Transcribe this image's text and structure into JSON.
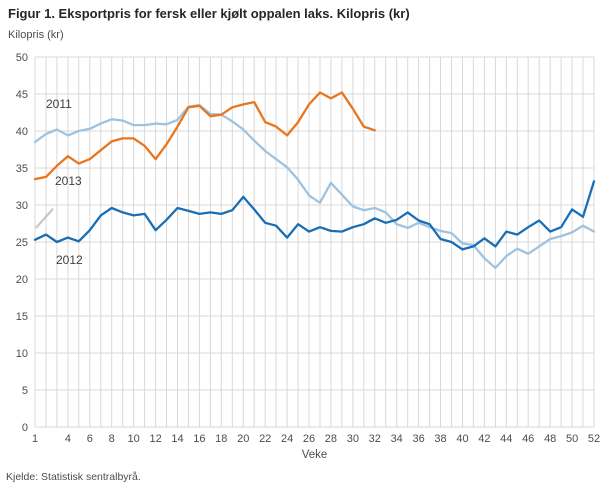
{
  "chart_data": {
    "type": "line",
    "title": "Figur 1. Eksportpris for fersk eller kjølt oppalen laks. Kilopris (kr)",
    "ylabel": "Kilopris (kr)",
    "xlabel": "Veke",
    "source": "Kjelde: Statistisk sentralbyrå.",
    "xlim": [
      1,
      52
    ],
    "ylim": [
      0,
      50
    ],
    "yticks": [
      0,
      5,
      10,
      15,
      20,
      25,
      30,
      35,
      40,
      45,
      50
    ],
    "xticks": [
      1,
      4,
      6,
      8,
      10,
      12,
      14,
      16,
      18,
      20,
      22,
      24,
      26,
      28,
      30,
      32,
      34,
      36,
      38,
      40,
      42,
      44,
      46,
      48,
      50,
      52
    ],
    "grid": "both",
    "legend_position": "inline-labels",
    "colors": {
      "grid": "#d8d8d8",
      "axis_text": "#4d4d4d"
    },
    "x": [
      1,
      2,
      3,
      4,
      5,
      6,
      7,
      8,
      9,
      10,
      11,
      12,
      13,
      14,
      15,
      16,
      17,
      18,
      19,
      20,
      21,
      22,
      23,
      24,
      25,
      26,
      27,
      28,
      29,
      30,
      31,
      32,
      33,
      34,
      35,
      36,
      37,
      38,
      39,
      40,
      41,
      42,
      43,
      44,
      45,
      46,
      47,
      48,
      49,
      50,
      51,
      52
    ],
    "series": [
      {
        "name": "2011",
        "color": "#9dc3e0",
        "values": [
          38.5,
          39.6,
          40.2,
          39.4,
          40.0,
          40.3,
          41.0,
          41.6,
          41.4,
          40.8,
          40.8,
          41.0,
          40.9,
          41.5,
          43.3,
          43.5,
          42.3,
          42.2,
          41.3,
          40.2,
          38.7,
          37.3,
          36.2,
          35.1,
          33.4,
          31.3,
          30.3,
          33.0,
          31.4,
          29.8,
          29.3,
          29.6,
          29.0,
          27.4,
          26.9,
          27.6,
          27.0,
          26.5,
          26.2,
          24.8,
          24.6,
          22.8,
          21.5,
          23.1,
          24.1,
          23.4,
          24.4,
          25.4,
          25.8,
          26.3,
          27.2,
          26.4
        ]
      },
      {
        "name": "2012",
        "color": "#1a6eb4",
        "values": [
          25.3,
          26.0,
          25.0,
          25.6,
          25.1,
          26.6,
          28.6,
          29.6,
          29.0,
          28.6,
          28.8,
          26.6,
          28.0,
          29.6,
          29.2,
          28.8,
          29.0,
          28.8,
          29.3,
          31.1,
          29.4,
          27.6,
          27.2,
          25.6,
          27.4,
          26.4,
          27.0,
          26.5,
          26.4,
          27.0,
          27.4,
          28.2,
          27.6,
          28.0,
          29.0,
          27.9,
          27.4,
          25.4,
          25.0,
          24.0,
          24.4,
          25.5,
          24.4,
          26.4,
          26.0,
          27.0,
          27.9,
          26.4,
          27.0,
          29.4,
          28.4,
          33.2
        ]
      },
      {
        "name": "2013",
        "color": "#e8761f",
        "values": [
          33.5,
          33.8,
          35.3,
          36.6,
          35.6,
          36.2,
          37.4,
          38.6,
          39.0,
          39.0,
          38.0,
          36.2,
          38.2,
          40.6,
          43.2,
          43.4,
          42.0,
          42.2,
          43.2,
          43.6,
          43.9,
          41.2,
          40.6,
          39.4,
          41.2,
          43.6,
          45.2,
          44.4,
          45.2,
          43.0,
          40.6,
          40.1
        ]
      }
    ]
  }
}
